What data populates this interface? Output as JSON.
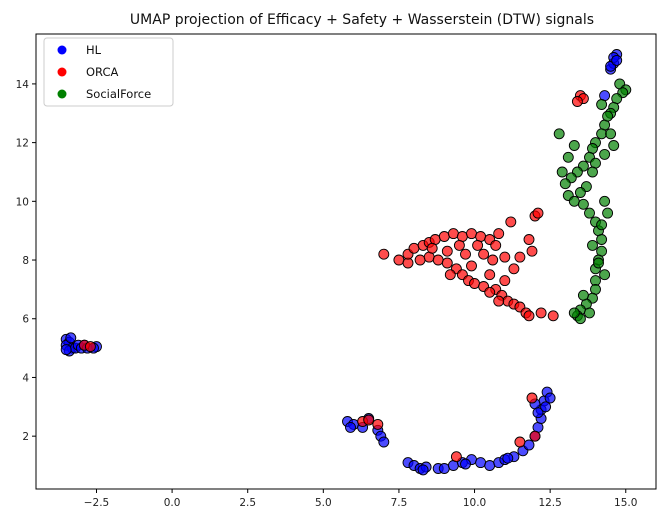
{
  "chart_data": {
    "type": "scatter",
    "title": "UMAP projection of Efficacy + Safety + Wasserstein (DTW) signals",
    "xlabel": "",
    "ylabel": "",
    "xlim": [
      -4.5,
      16.0
    ],
    "ylim": [
      0.2,
      15.7
    ],
    "x_ticks": [
      -2.5,
      0.0,
      2.5,
      5.0,
      7.5,
      10.0,
      12.5,
      15.0
    ],
    "x_tick_labels": [
      "−2.5",
      "0.0",
      "2.5",
      "5.0",
      "7.5",
      "10.0",
      "12.5",
      "15.0"
    ],
    "y_ticks": [
      2,
      4,
      6,
      8,
      10,
      12,
      14
    ],
    "y_tick_labels": [
      "2",
      "4",
      "6",
      "8",
      "10",
      "12",
      "14"
    ],
    "grid": false,
    "legend_position": "top-left",
    "series": [
      {
        "name": "HL",
        "color": "#0000ff",
        "points": [
          [
            -3.5,
            5.3
          ],
          [
            -3.4,
            5.2
          ],
          [
            -3.5,
            5.1
          ],
          [
            -3.3,
            5.0
          ],
          [
            -3.4,
            4.9
          ],
          [
            -3.2,
            5.0
          ],
          [
            -3.1,
            5.1
          ],
          [
            -3.0,
            5.0
          ],
          [
            -2.9,
            5.1
          ],
          [
            -2.8,
            5.0
          ],
          [
            -2.5,
            5.05
          ],
          [
            -2.6,
            5.0
          ],
          [
            -3.5,
            4.95
          ],
          [
            -3.35,
            5.35
          ],
          [
            5.8,
            2.5
          ],
          [
            6.0,
            2.4
          ],
          [
            6.3,
            2.3
          ],
          [
            6.5,
            2.6
          ],
          [
            6.8,
            2.2
          ],
          [
            6.9,
            2.0
          ],
          [
            7.0,
            1.8
          ],
          [
            5.9,
            2.3
          ],
          [
            7.8,
            1.1
          ],
          [
            8.0,
            1.0
          ],
          [
            8.2,
            0.9
          ],
          [
            8.4,
            0.95
          ],
          [
            8.8,
            0.9
          ],
          [
            9.0,
            0.9
          ],
          [
            9.3,
            1.0
          ],
          [
            9.6,
            1.1
          ],
          [
            9.9,
            1.2
          ],
          [
            10.2,
            1.1
          ],
          [
            10.5,
            1.0
          ],
          [
            10.8,
            1.1
          ],
          [
            11.0,
            1.2
          ],
          [
            11.3,
            1.3
          ],
          [
            11.6,
            1.5
          ],
          [
            11.8,
            1.7
          ],
          [
            12.0,
            2.0
          ],
          [
            12.1,
            2.3
          ],
          [
            12.2,
            2.6
          ],
          [
            12.2,
            2.9
          ],
          [
            12.3,
            3.2
          ],
          [
            12.4,
            3.5
          ],
          [
            12.5,
            3.3
          ],
          [
            12.0,
            3.1
          ],
          [
            12.1,
            2.8
          ],
          [
            12.35,
            3.0
          ],
          [
            8.3,
            0.85
          ],
          [
            9.7,
            1.05
          ],
          [
            11.1,
            1.25
          ],
          [
            14.5,
            14.5
          ],
          [
            14.6,
            14.7
          ],
          [
            14.7,
            15.0
          ],
          [
            14.5,
            14.6
          ],
          [
            14.6,
            14.9
          ],
          [
            14.7,
            14.8
          ],
          [
            14.3,
            13.6
          ]
        ]
      },
      {
        "name": "ORCA",
        "color": "#ff0000",
        "points": [
          [
            -2.9,
            5.1
          ],
          [
            -2.7,
            5.05
          ],
          [
            6.3,
            2.5
          ],
          [
            6.8,
            2.4
          ],
          [
            6.5,
            2.55
          ],
          [
            9.4,
            1.3
          ],
          [
            11.9,
            3.3
          ],
          [
            12.0,
            2.0
          ],
          [
            11.5,
            1.8
          ],
          [
            7.0,
            8.2
          ],
          [
            7.5,
            8.0
          ],
          [
            7.8,
            7.9
          ],
          [
            7.8,
            8.2
          ],
          [
            8.0,
            8.4
          ],
          [
            8.3,
            8.5
          ],
          [
            8.5,
            8.6
          ],
          [
            8.7,
            8.7
          ],
          [
            9.0,
            8.8
          ],
          [
            9.3,
            8.9
          ],
          [
            9.6,
            8.8
          ],
          [
            9.9,
            8.9
          ],
          [
            10.2,
            8.8
          ],
          [
            10.5,
            8.7
          ],
          [
            10.7,
            8.5
          ],
          [
            10.8,
            8.9
          ],
          [
            8.2,
            8.0
          ],
          [
            8.5,
            8.1
          ],
          [
            8.8,
            8.0
          ],
          [
            9.1,
            7.9
          ],
          [
            9.4,
            7.7
          ],
          [
            9.6,
            7.5
          ],
          [
            9.8,
            7.3
          ],
          [
            10.0,
            7.2
          ],
          [
            10.3,
            7.1
          ],
          [
            10.5,
            7.5
          ],
          [
            10.7,
            7.0
          ],
          [
            10.9,
            6.8
          ],
          [
            11.1,
            6.6
          ],
          [
            11.3,
            6.5
          ],
          [
            11.5,
            6.4
          ],
          [
            11.7,
            6.2
          ],
          [
            11.8,
            6.1
          ],
          [
            12.2,
            6.2
          ],
          [
            12.6,
            6.1
          ],
          [
            10.5,
            6.9
          ],
          [
            10.8,
            6.6
          ],
          [
            11.0,
            7.3
          ],
          [
            11.3,
            7.7
          ],
          [
            11.5,
            8.1
          ],
          [
            11.8,
            8.7
          ],
          [
            12.0,
            9.5
          ],
          [
            12.1,
            9.6
          ],
          [
            11.2,
            9.3
          ],
          [
            11.9,
            8.3
          ],
          [
            10.3,
            8.2
          ],
          [
            9.9,
            7.8
          ],
          [
            9.1,
            8.3
          ],
          [
            8.6,
            8.4
          ],
          [
            9.7,
            8.2
          ],
          [
            10.1,
            8.5
          ],
          [
            9.2,
            7.5
          ],
          [
            9.5,
            8.5
          ],
          [
            10.6,
            8.0
          ],
          [
            11.0,
            8.1
          ],
          [
            13.5,
            13.6
          ],
          [
            13.6,
            13.5
          ],
          [
            13.4,
            13.4
          ]
        ]
      },
      {
        "name": "SocialForce",
        "color": "#008000",
        "points": [
          [
            14.8,
            14.0
          ],
          [
            15.0,
            13.8
          ],
          [
            14.9,
            13.7
          ],
          [
            14.7,
            13.5
          ],
          [
            14.6,
            13.2
          ],
          [
            14.5,
            13.0
          ],
          [
            14.3,
            12.6
          ],
          [
            14.2,
            12.3
          ],
          [
            14.0,
            12.0
          ],
          [
            13.9,
            11.8
          ],
          [
            13.8,
            11.5
          ],
          [
            13.6,
            11.2
          ],
          [
            13.4,
            11.0
          ],
          [
            13.2,
            10.8
          ],
          [
            13.0,
            10.6
          ],
          [
            13.1,
            10.2
          ],
          [
            13.3,
            10.0
          ],
          [
            13.6,
            9.9
          ],
          [
            13.8,
            9.6
          ],
          [
            14.0,
            9.3
          ],
          [
            14.1,
            9.0
          ],
          [
            14.2,
            8.7
          ],
          [
            14.2,
            8.3
          ],
          [
            14.1,
            8.0
          ],
          [
            14.0,
            7.7
          ],
          [
            14.0,
            7.3
          ],
          [
            14.0,
            7.0
          ],
          [
            13.9,
            6.7
          ],
          [
            13.7,
            6.5
          ],
          [
            13.5,
            6.3
          ],
          [
            13.4,
            6.1
          ],
          [
            13.5,
            6.0
          ],
          [
            13.3,
            6.2
          ],
          [
            14.2,
            13.3
          ],
          [
            14.4,
            12.9
          ],
          [
            14.5,
            12.3
          ],
          [
            14.6,
            11.9
          ],
          [
            14.3,
            11.6
          ],
          [
            14.0,
            11.3
          ],
          [
            13.9,
            11.0
          ],
          [
            13.7,
            10.5
          ],
          [
            13.5,
            10.3
          ],
          [
            14.3,
            10.0
          ],
          [
            14.4,
            9.6
          ],
          [
            14.2,
            9.2
          ],
          [
            13.9,
            8.5
          ],
          [
            14.1,
            7.9
          ],
          [
            14.3,
            7.5
          ],
          [
            13.6,
            6.8
          ],
          [
            13.8,
            6.2
          ],
          [
            12.8,
            12.3
          ],
          [
            13.1,
            11.5
          ],
          [
            12.9,
            11.0
          ],
          [
            13.3,
            11.9
          ]
        ]
      }
    ]
  }
}
